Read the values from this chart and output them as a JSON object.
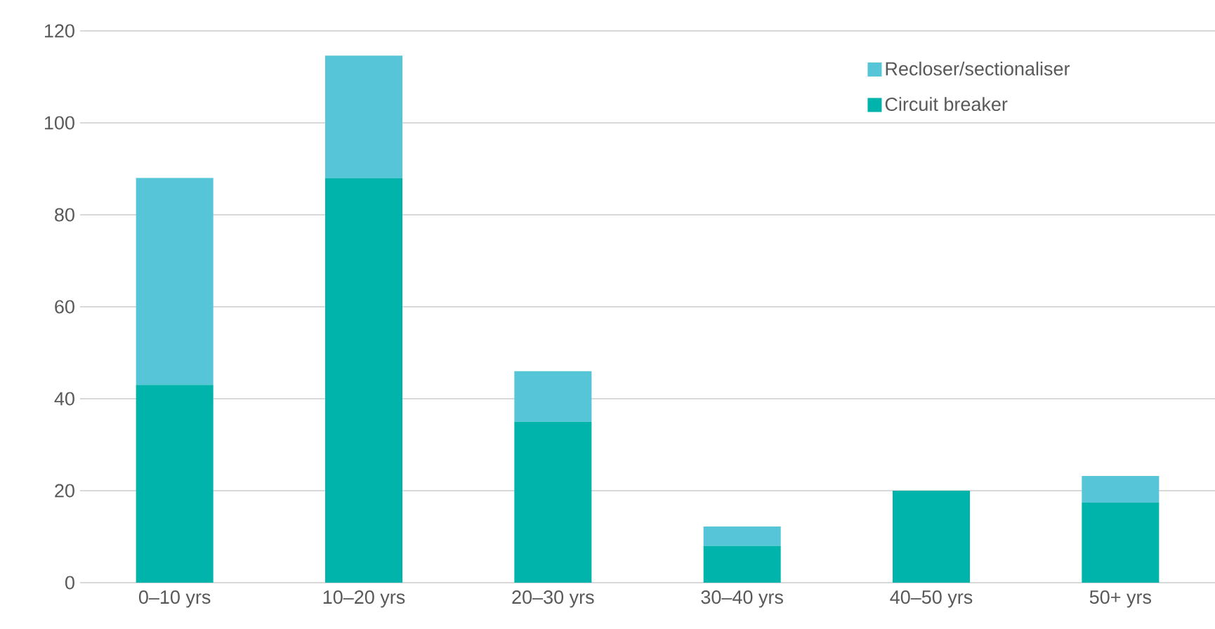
{
  "chart_data": {
    "type": "bar",
    "stacked": true,
    "categories": [
      "0–10 yrs",
      "10–20 yrs",
      "20–30 yrs",
      "30–40 yrs",
      "40–50 yrs",
      "50+ yrs"
    ],
    "series": [
      {
        "name": "Circuit breaker",
        "color": "#00b4ab",
        "values": [
          43,
          88,
          35,
          8,
          20,
          17.4
        ]
      },
      {
        "name": "Recloser/sectionaliser",
        "color": "#56c5d7",
        "values": [
          45,
          26.6,
          11,
          4.2,
          0,
          5.8
        ]
      }
    ],
    "ylim": [
      0,
      120
    ],
    "yticks": [
      0,
      20,
      40,
      60,
      80,
      100,
      120
    ],
    "grid": "y",
    "legend": "top right"
  }
}
